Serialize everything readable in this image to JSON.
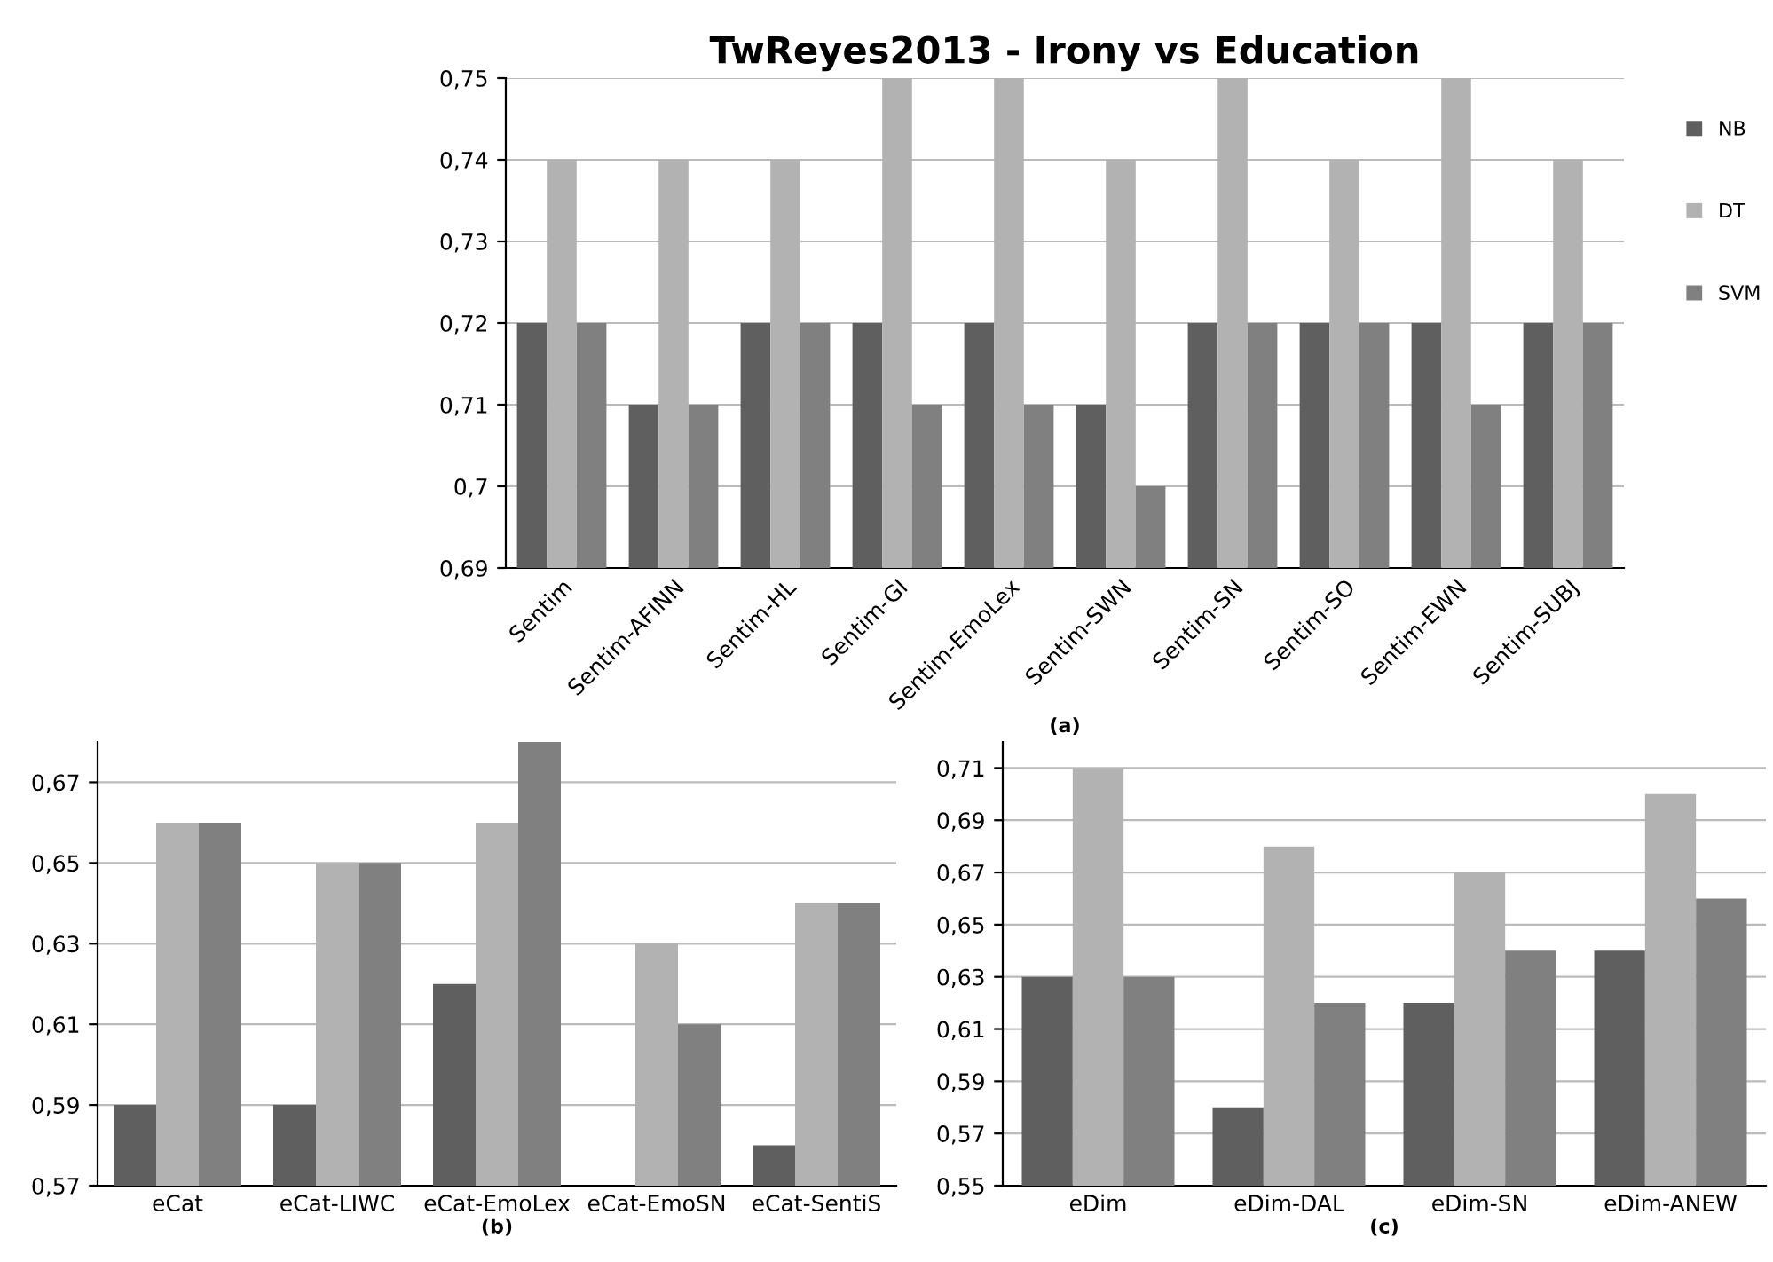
{
  "chart_data": [
    {
      "type": "bar",
      "title": "TwReyes2013 - Irony vs Education",
      "xlabel": "(a)",
      "categories": [
        "Sentim",
        "Sentim-AFINN",
        "Sentim-HL",
        "Sentim-GI",
        "Sentim-EmoLex",
        "Sentim-SWN",
        "Sentim-SN",
        "Sentim-SO",
        "Sentim-EWN",
        "Sentim-SUBJ"
      ],
      "series": [
        {
          "name": "NB",
          "color": "#5f5f5f",
          "values": [
            0.72,
            0.71,
            0.72,
            0.72,
            0.72,
            0.71,
            0.72,
            0.72,
            0.72,
            0.72
          ]
        },
        {
          "name": "DT",
          "color": "#b2b2b2",
          "values": [
            0.74,
            0.74,
            0.74,
            0.75,
            0.75,
            0.74,
            0.75,
            0.74,
            0.75,
            0.74
          ]
        },
        {
          "name": "SVM",
          "color": "#808080",
          "values": [
            0.72,
            0.71,
            0.72,
            0.71,
            0.71,
            0.7,
            0.72,
            0.72,
            0.71,
            0.72
          ]
        }
      ],
      "ylim": [
        0.69,
        0.75
      ],
      "yticks": [
        {
          "value": 0.69,
          "label": "0,69"
        },
        {
          "value": 0.7,
          "label": "0,7"
        },
        {
          "value": 0.71,
          "label": "0,71"
        },
        {
          "value": 0.72,
          "label": "0,72"
        },
        {
          "value": 0.73,
          "label": "0,73"
        },
        {
          "value": 0.74,
          "label": "0,74"
        },
        {
          "value": 0.75,
          "label": "0,75"
        }
      ],
      "grid": "y",
      "legend": "right"
    },
    {
      "type": "bar",
      "xlabel": "(b)",
      "categories": [
        "eCat",
        "eCat-LIWC",
        "eCat-EmoLex",
        "eCat-EmoSN",
        "eCat-SentiS"
      ],
      "series": [
        {
          "color": "#5f5f5f",
          "values": [
            0.59,
            0.59,
            0.62,
            null,
            0.58
          ]
        },
        {
          "color": "#b2b2b2",
          "values": [
            0.66,
            0.65,
            0.66,
            0.63,
            0.64
          ]
        },
        {
          "color": "#808080",
          "values": [
            0.66,
            0.65,
            0.68,
            0.61,
            0.64
          ]
        }
      ],
      "ylim": [
        0.57,
        0.68
      ],
      "yticks": [
        {
          "value": 0.57,
          "label": "0,57"
        },
        {
          "value": 0.59,
          "label": "0,59"
        },
        {
          "value": 0.61,
          "label": "0,61"
        },
        {
          "value": 0.63,
          "label": "0,63"
        },
        {
          "value": 0.65,
          "label": "0,65"
        },
        {
          "value": 0.67,
          "label": "0,67"
        }
      ],
      "grid": "y"
    },
    {
      "type": "bar",
      "xlabel": "(c)",
      "categories": [
        "eDim",
        "eDim-DAL",
        "eDim-SN",
        "eDim-ANEW"
      ],
      "series": [
        {
          "color": "#5f5f5f",
          "values": [
            0.63,
            0.58,
            0.62,
            0.64
          ]
        },
        {
          "color": "#b2b2b2",
          "values": [
            0.71,
            0.68,
            0.67,
            0.7
          ]
        },
        {
          "color": "#808080",
          "values": [
            0.63,
            0.62,
            0.64,
            0.66
          ]
        }
      ],
      "ylim": [
        0.55,
        0.72
      ],
      "yticks": [
        {
          "value": 0.55,
          "label": "0,55"
        },
        {
          "value": 0.57,
          "label": "0,57"
        },
        {
          "value": 0.59,
          "label": "0,59"
        },
        {
          "value": 0.61,
          "label": "0,61"
        },
        {
          "value": 0.63,
          "label": "0,63"
        },
        {
          "value": 0.65,
          "label": "0,65"
        },
        {
          "value": 0.67,
          "label": "0,67"
        },
        {
          "value": 0.69,
          "label": "0,69"
        },
        {
          "value": 0.71,
          "label": "0,71"
        }
      ],
      "grid": "y"
    }
  ]
}
